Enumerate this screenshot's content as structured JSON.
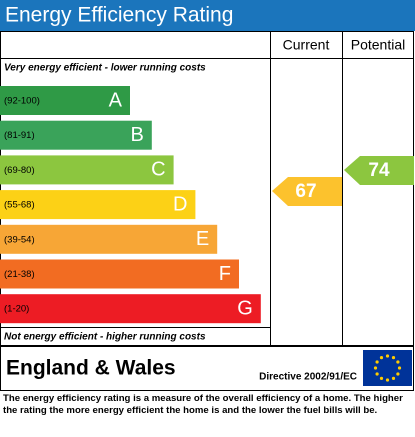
{
  "title": "Energy Efficiency Rating",
  "columns": [
    "Current",
    "Potential"
  ],
  "top_note": "Very energy efficient - lower running costs",
  "bands": [
    {
      "range": "(92-100)",
      "letter": "A",
      "color": "#2f9a46"
    },
    {
      "range": "(81-91)",
      "letter": "B",
      "color": "#3aa35a"
    },
    {
      "range": "(69-80)",
      "letter": "C",
      "color": "#8cc63f"
    },
    {
      "range": "(55-68)",
      "letter": "D",
      "color": "#fcd116"
    },
    {
      "range": "(39-54)",
      "letter": "E",
      "color": "#f7a636"
    },
    {
      "range": "(21-38)",
      "letter": "F",
      "color": "#f26c22"
    },
    {
      "range": "(1-20)",
      "letter": "G",
      "color": "#ed1c24"
    }
  ],
  "bottom_note": "Not energy efficient - higher running costs",
  "current": {
    "value": 67,
    "color": "#fcc22d"
  },
  "potential": {
    "value": 74,
    "color": "#8cc63f"
  },
  "region": "England & Wales",
  "directive": "Directive 2002/91/EC",
  "footer": "The energy efficiency rating is a measure of the overall efficiency of a home. The higher the rating the more energy efficient the home is and the lower the fuel bills will be."
}
